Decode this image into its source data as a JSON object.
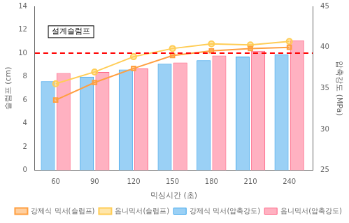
{
  "chart_data": {
    "type": "bar",
    "x": [
      60,
      90,
      120,
      150,
      180,
      210,
      240
    ],
    "xlim": [
      44,
      258
    ],
    "xticks": [
      60,
      90,
      120,
      150,
      180,
      210,
      240
    ],
    "ylim": [
      0,
      14
    ],
    "yticks": [
      0,
      2,
      4,
      6,
      8,
      10,
      12,
      14
    ],
    "y2lim": [
      25,
      45
    ],
    "y2ticks": [
      25,
      30,
      35,
      40,
      45
    ],
    "xlabel": "믹싱시간 (초)",
    "ylabel": "슬럼프 (cm)",
    "y2label": "압축강도 (MPa)",
    "series": [
      {
        "name": "강제식 믹서(압축강도)",
        "type": "bar",
        "values": [
          7.6,
          8.0,
          8.6,
          9.1,
          9.4,
          9.7,
          9.9
        ]
      },
      {
        "name": "옴니믹서(압축강도)",
        "type": "bar",
        "values": [
          8.3,
          8.4,
          8.7,
          9.2,
          9.8,
          10.2,
          11.1
        ]
      },
      {
        "name": "강제식 믹서(슬럼프)",
        "type": "line",
        "marker": "square",
        "values": [
          6.0,
          7.5,
          8.7,
          9.8,
          10.2,
          10.4,
          10.5
        ]
      },
      {
        "name": "옴니믹서(슬럼프)",
        "type": "line",
        "marker": "circle",
        "values": [
          7.4,
          8.4,
          9.7,
          10.4,
          10.8,
          10.7,
          11.0
        ]
      }
    ],
    "hline": {
      "y": 10.0,
      "color": "#ff0000",
      "line_style": "dashed"
    },
    "annotations": [
      "설계슬럼프"
    ],
    "grid": false,
    "legend": "lower right"
  }
}
